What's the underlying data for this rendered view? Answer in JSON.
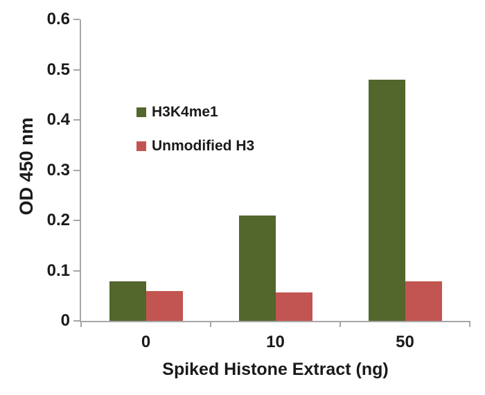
{
  "chart_data": {
    "type": "bar",
    "title": "",
    "categories": [
      "0",
      "10",
      "50"
    ],
    "series": [
      {
        "name": "H3K4me1",
        "color": "#53662b",
        "values": [
          0.078,
          0.21,
          0.48
        ]
      },
      {
        "name": "Unmodified H3",
        "color": "#c25551",
        "values": [
          0.06,
          0.057,
          0.078
        ]
      }
    ],
    "xlabel": "Spiked Histone Extract (ng)",
    "ylabel": "OD 450 nm",
    "ylim": [
      0,
      0.6
    ],
    "ytick_values": [
      0,
      0.1,
      0.2,
      0.3,
      0.4,
      0.5,
      0.6
    ],
    "ytick_labels": [
      "0",
      "0.1",
      "0.2",
      "0.3",
      "0.4",
      "0.5",
      "0.6"
    ],
    "grid": false,
    "legend_position": "upper-left-inside",
    "axis_color": "#a6a6a6",
    "text_color": "#1a1a1a",
    "background": "#ffffff"
  }
}
